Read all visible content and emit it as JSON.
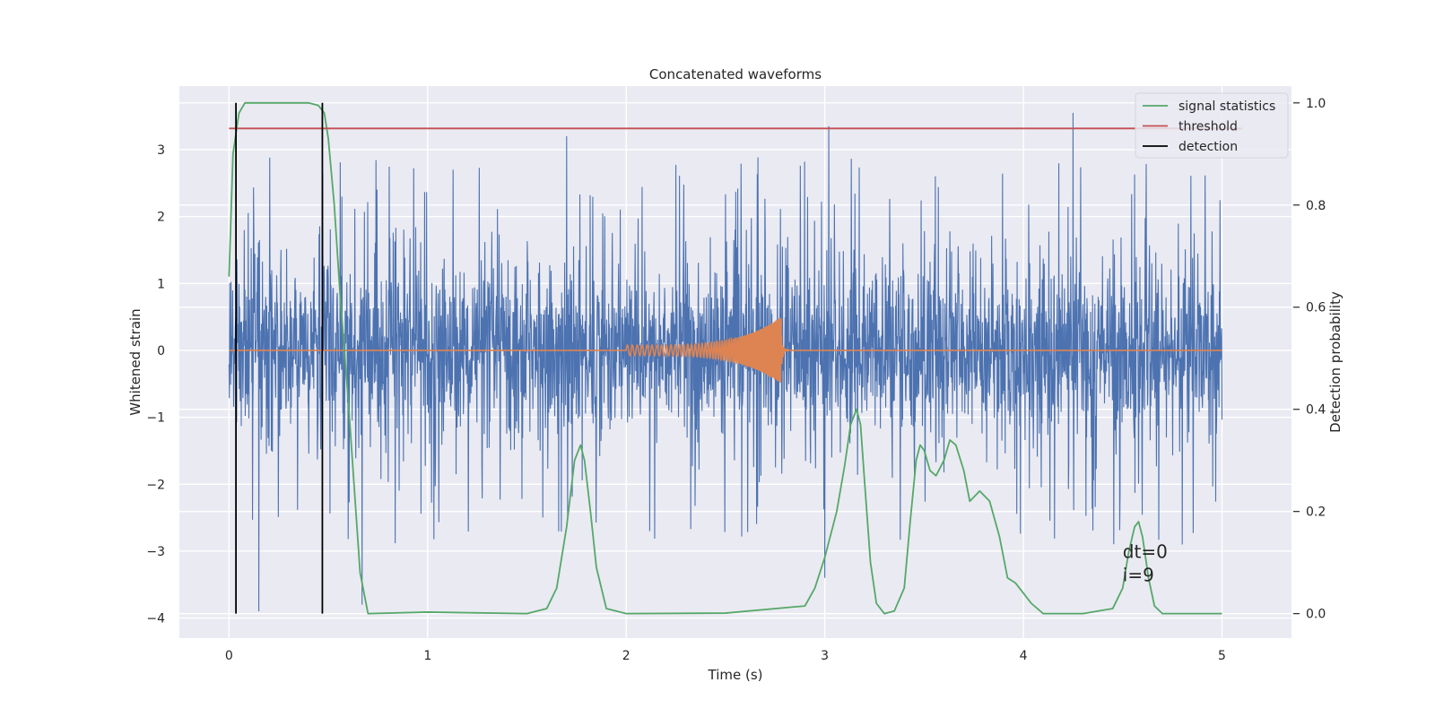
{
  "chart_data": {
    "type": "line",
    "title": "Concatenated waveforms",
    "xlabel": "Time (s)",
    "ylabel": "Whitened strain",
    "y2label": "Detection probability",
    "xlim": [
      -0.25,
      5.35
    ],
    "ylim": [
      -4.3,
      3.95
    ],
    "y2lim": [
      -0.048,
      1.033
    ],
    "xticks": [
      0,
      1,
      2,
      3,
      4,
      5
    ],
    "xtick_labels": [
      "0",
      "1",
      "2",
      "3",
      "4",
      "5"
    ],
    "yticks": [
      -4,
      -3,
      -2,
      -1,
      0,
      1,
      2,
      3
    ],
    "ytick_labels": [
      "−4",
      "−3",
      "−2",
      "−1",
      "0",
      "1",
      "2",
      "3"
    ],
    "y2ticks": [
      0.0,
      0.2,
      0.4,
      0.6,
      0.8,
      1.0
    ],
    "y2tick_labels": [
      "0.0",
      "0.2",
      "0.4",
      "0.6",
      "0.8",
      "1.0"
    ],
    "grid": true,
    "legend_position": "top-right",
    "legend": [
      {
        "label": "signal statistics",
        "color": "#55a868"
      },
      {
        "label": "threshold",
        "color": "#c44e52"
      },
      {
        "label": "detection",
        "color": "#000000"
      }
    ],
    "series": [
      {
        "kind": "strain",
        "axis": "left",
        "color": "#4c72b0",
        "x_range": [
          0,
          5
        ],
        "typical_envelope": [
          -1.3,
          1.3
        ],
        "extreme_peaks": [
          [
            0.15,
            -3.9
          ],
          [
            0.67,
            -3.8
          ],
          [
            1.7,
            3.2
          ],
          [
            3.02,
            3.35
          ],
          [
            3.0,
            -3.4
          ],
          [
            4.25,
            3.55
          ],
          [
            4.8,
            -2.9
          ]
        ]
      },
      {
        "kind": "injection",
        "axis": "left",
        "color": "#dd8452",
        "x_range": [
          0,
          5
        ],
        "chirp_start": 2.0,
        "chirp_end": 2.78,
        "peak_amplitude": 0.5
      },
      {
        "name": "signal statistics",
        "axis": "right",
        "color": "#55a868",
        "x": [
          0.0,
          0.02,
          0.05,
          0.08,
          0.12,
          0.2,
          0.3,
          0.4,
          0.45,
          0.48,
          0.5,
          0.53,
          0.56,
          0.6,
          0.63,
          0.66,
          0.7,
          1.0,
          1.5,
          1.6,
          1.65,
          1.7,
          1.74,
          1.77,
          1.79,
          1.82,
          1.85,
          1.9,
          2.0,
          2.5,
          2.9,
          2.95,
          3.0,
          3.06,
          3.1,
          3.13,
          3.16,
          3.18,
          3.2,
          3.23,
          3.26,
          3.3,
          3.35,
          3.4,
          3.43,
          3.46,
          3.48,
          3.5,
          3.53,
          3.56,
          3.6,
          3.63,
          3.66,
          3.7,
          3.73,
          3.78,
          3.83,
          3.88,
          3.92,
          3.96,
          4.0,
          4.04,
          4.1,
          4.3,
          4.45,
          4.5,
          4.53,
          4.56,
          4.58,
          4.6,
          4.63,
          4.66,
          4.7,
          5.0
        ],
        "y": [
          0.66,
          0.9,
          0.98,
          1.0,
          1.0,
          1.0,
          1.0,
          1.0,
          0.995,
          0.98,
          0.93,
          0.8,
          0.62,
          0.42,
          0.25,
          0.08,
          0.0,
          0.003,
          0.0,
          0.01,
          0.05,
          0.17,
          0.3,
          0.33,
          0.3,
          0.2,
          0.09,
          0.01,
          0.0,
          0.001,
          0.015,
          0.05,
          0.11,
          0.2,
          0.29,
          0.37,
          0.4,
          0.37,
          0.26,
          0.1,
          0.02,
          0.0,
          0.005,
          0.05,
          0.18,
          0.3,
          0.33,
          0.32,
          0.28,
          0.27,
          0.3,
          0.34,
          0.33,
          0.28,
          0.22,
          0.24,
          0.22,
          0.15,
          0.07,
          0.06,
          0.04,
          0.02,
          0.0,
          0.0,
          0.01,
          0.05,
          0.12,
          0.17,
          0.18,
          0.15,
          0.07,
          0.015,
          0.0,
          0.0
        ]
      },
      {
        "name": "threshold",
        "axis": "right",
        "color": "#c44e52",
        "x": [
          0.0,
          5.1
        ],
        "y": [
          0.95,
          0.95
        ]
      },
      {
        "name": "detection",
        "axis": "right",
        "color": "#000000",
        "vertical_lines_x": [
          0.035,
          0.47
        ],
        "y_range": [
          0.0,
          1.0
        ]
      }
    ],
    "annotations": [
      {
        "text": "dt=0",
        "x": 4.5,
        "y": -3.1
      },
      {
        "text": "i=9",
        "x": 4.5,
        "y": -3.45
      }
    ]
  }
}
